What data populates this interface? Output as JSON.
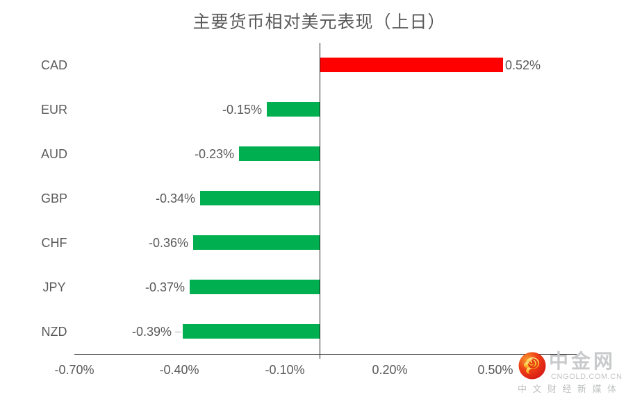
{
  "chart_data": {
    "type": "bar",
    "orientation": "horizontal",
    "title": "主要货币相对美元表现（上日）",
    "categories": [
      "CAD",
      "EUR",
      "AUD",
      "GBP",
      "CHF",
      "JPY",
      "NZD"
    ],
    "values": [
      0.52,
      -0.15,
      -0.23,
      -0.34,
      -0.36,
      -0.37,
      -0.39
    ],
    "value_labels": [
      "0.52%",
      "-0.15%",
      "-0.23%",
      "-0.34%",
      "-0.36%",
      "-0.37%",
      "-0.39%"
    ],
    "unit": "%",
    "xlim": [
      -0.7,
      0.732
    ],
    "x_tick_values": [
      -0.7,
      -0.4,
      -0.1,
      0.2,
      0.5
    ],
    "x_tick_labels": [
      "-0.70%",
      "-0.40%",
      "-0.10%",
      "0.20%",
      "0.50%"
    ],
    "positive_color": "#ff0000",
    "negative_color": "#00b050",
    "label_leader_line_categories": [
      "NZD"
    ],
    "grid": false,
    "legend": false
  },
  "watermark": {
    "brand": "中金网",
    "domain": "CNGOLD.COM.CN",
    "tagline": "中文财经新媒体"
  }
}
